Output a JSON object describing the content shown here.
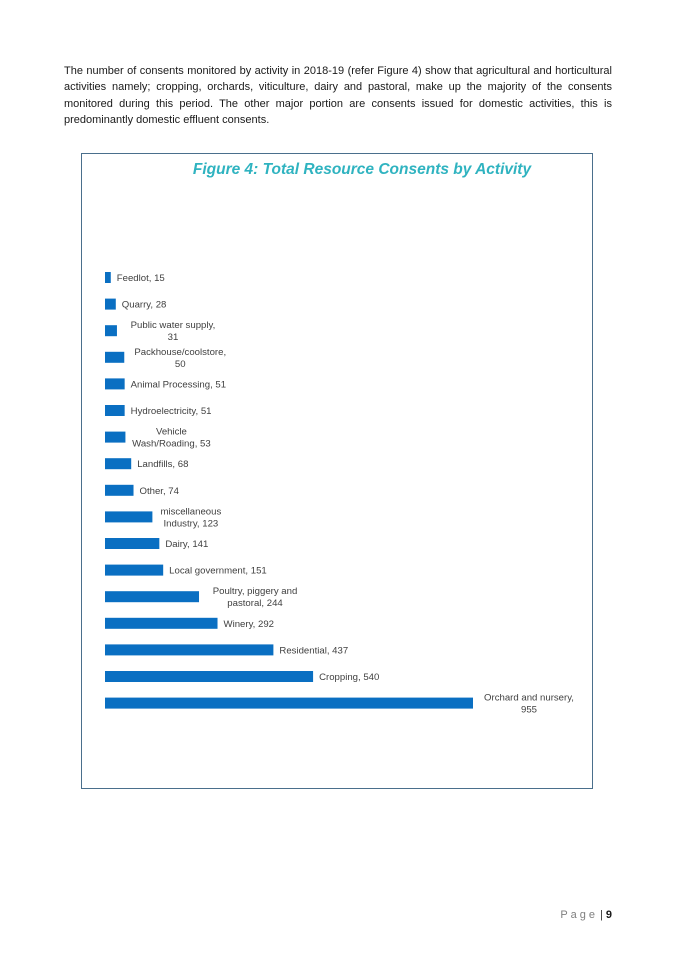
{
  "intro_text": "The number of consents monitored by activity in 2018-19 (refer Figure 4) show that agricultural and horticultural activities namely; cropping, orchards, viticulture, dairy and pastoral, make up the majority of the consents monitored during this period. The other major portion are consents issued for domestic activities, this is predominantly domestic effluent consents.",
  "colors": {
    "bar": "#0a6fc2",
    "title": "#2fb3c0"
  },
  "chart_data": {
    "type": "bar",
    "orientation": "horizontal",
    "title": "Figure 4: Total Resource Consents by Activity",
    "xlabel": "",
    "ylabel": "",
    "xlim": [
      0,
      955
    ],
    "grid": false,
    "categories": [
      "Feedlot",
      "Quarry",
      "Public water supply",
      "Packhouse/coolstore",
      "Animal Processing",
      "Hydroelectricity",
      "Vehicle Wash/Roading",
      "Landfills",
      "Other",
      "miscellaneous Industry",
      "Dairy",
      "Local government",
      "Poultry, piggery and pastoral",
      "Winery",
      "Residential",
      "Cropping",
      "Orchard and nursery"
    ],
    "values": [
      15,
      28,
      31,
      50,
      51,
      51,
      53,
      68,
      74,
      123,
      141,
      151,
      244,
      292,
      437,
      540,
      955
    ],
    "labels": [
      [
        "Feedlot, 15"
      ],
      [
        "Quarry, 28"
      ],
      [
        "Public water supply,",
        "31"
      ],
      [
        "Packhouse/coolstore,",
        "50"
      ],
      [
        "Animal Processing, 51"
      ],
      [
        "Hydroelectricity, 51"
      ],
      [
        "Vehicle",
        "Wash/Roading, 53"
      ],
      [
        "Landfills, 68"
      ],
      [
        "Other, 74"
      ],
      [
        "miscellaneous",
        "Industry, 123"
      ],
      [
        "Dairy, 141"
      ],
      [
        "Local government, 151"
      ],
      [
        "Poultry, piggery and",
        "pastoral, 244"
      ],
      [
        "Winery, 292"
      ],
      [
        "Residential, 437"
      ],
      [
        "Cropping, 540"
      ],
      [
        "Orchard and nursery,",
        "955"
      ]
    ]
  },
  "footer": {
    "page_word": "Page",
    "separator": "|",
    "page_number": "9"
  }
}
